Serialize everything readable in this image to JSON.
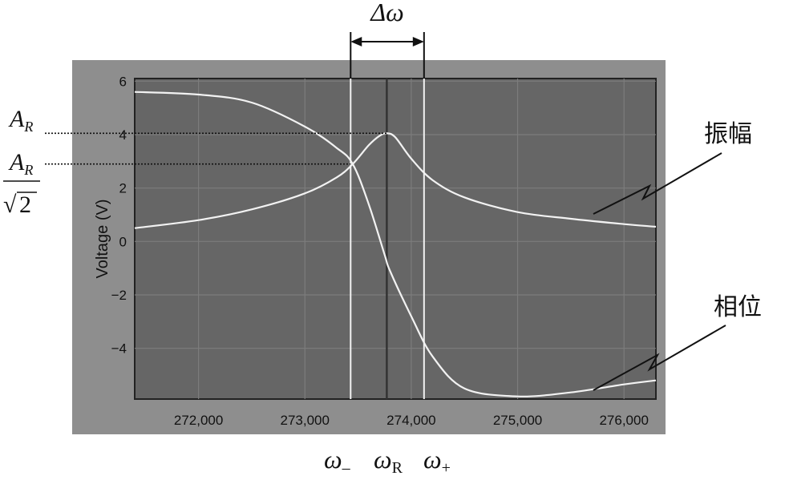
{
  "chart_data": {
    "type": "line",
    "ylabel": "Voltage (V)",
    "xlabel": "",
    "xlim": [
      271400,
      276300
    ],
    "ylim": [
      -5.9,
      6.1
    ],
    "x_ticks": [
      272000,
      273000,
      274000,
      275000,
      276000
    ],
    "x_tick_labels": [
      "272,000",
      "273,000",
      "274,000",
      "275,000",
      "276,000"
    ],
    "y_ticks": [
      6,
      4,
      2,
      0,
      -2,
      -4
    ],
    "y_tick_labels": [
      "6",
      "4",
      "2",
      "0",
      "−2",
      "−4"
    ],
    "grid": true,
    "series": [
      {
        "name": "振幅",
        "x": [
          271400,
          272000,
          272500,
          273000,
          273300,
          273450,
          273600,
          273700,
          273770,
          273850,
          274000,
          274200,
          274500,
          275000,
          275500,
          276000,
          276300
        ],
        "y": [
          0.5,
          0.8,
          1.2,
          1.8,
          2.4,
          2.9,
          3.6,
          3.95,
          4.05,
          3.9,
          3.1,
          2.3,
          1.65,
          1.1,
          0.85,
          0.65,
          0.55
        ]
      },
      {
        "name": "相位",
        "x": [
          271400,
          272000,
          272500,
          273000,
          273300,
          273450,
          273600,
          273750,
          273800,
          274000,
          274200,
          274500,
          275000,
          275500,
          276000,
          276300
        ],
        "y": [
          5.6,
          5.5,
          5.2,
          4.3,
          3.5,
          2.9,
          1.4,
          -0.5,
          -1.1,
          -2.8,
          -4.3,
          -5.5,
          -5.8,
          -5.65,
          -5.35,
          -5.2
        ]
      }
    ],
    "markers": {
      "omega_minus": 273430,
      "omega_r": 273770,
      "omega_plus": 274120,
      "A_R": 4.05,
      "A_R_over_sqrt2": 2.9
    },
    "annotations": {
      "delta_omega": "Δω",
      "omega_minus_symbol": "ω",
      "omega_minus_sub": "–",
      "omega_r_symbol": "ω",
      "omega_r_sub": "R",
      "omega_plus_symbol": "ω",
      "omega_plus_sub": "+",
      "a_r_symbol": "A",
      "a_r_sub": "R",
      "a_r2_symbol": "A",
      "a_r2_sub": "R",
      "sqrt_symbol": "√",
      "sqrt_value": "2",
      "label_amplitude": "振幅",
      "label_phase": "相位"
    }
  },
  "colors": {
    "frame": "#8e8e8e",
    "plot": "#666666",
    "grid": "#7c7c7c",
    "curve": "#f2f2f2",
    "dark_line": "#333333",
    "ink": "#111111"
  }
}
